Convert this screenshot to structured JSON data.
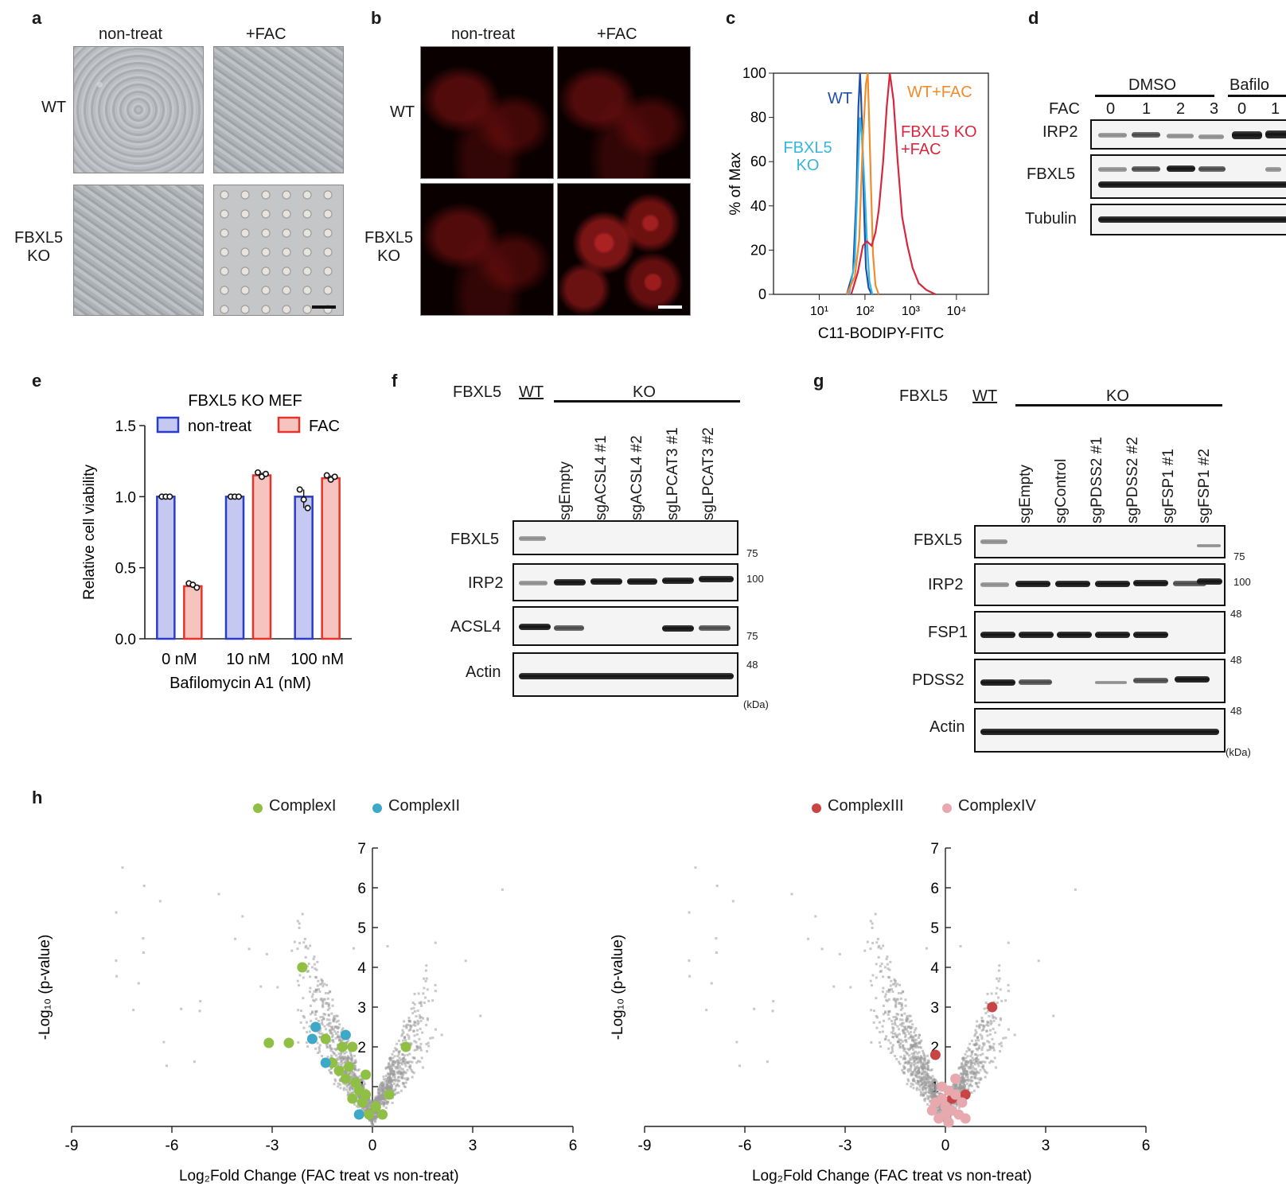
{
  "panel_letters": [
    "a",
    "b",
    "c",
    "d",
    "e",
    "f",
    "g",
    "h"
  ],
  "panel_a": {
    "col_labels": [
      "non-treat",
      "+FAC"
    ],
    "row_labels": [
      "WT",
      "FBXL5\nKO"
    ]
  },
  "panel_b": {
    "col_labels": [
      "non-treat",
      "+FAC"
    ],
    "row_labels": [
      "WT",
      "FBXL5\nKO"
    ]
  },
  "panel_c": {
    "chart_data": {
      "type": "line",
      "title": "",
      "xlabel": "C11-BODIPY-FITC",
      "ylabel": "% of Max",
      "xscale": "log",
      "xlim": [
        1,
        50000
      ],
      "ylim": [
        0,
        100
      ],
      "x_ticks": [
        "10¹",
        "10²",
        "10³",
        "10⁴"
      ],
      "y_ticks": [
        0,
        20,
        40,
        60,
        80,
        100
      ],
      "series": [
        {
          "name": "WT",
          "color": "#1f4fa8",
          "x": [
            40,
            55,
            65,
            72,
            78,
            82,
            88,
            95,
            105,
            120,
            140
          ],
          "y": [
            0,
            10,
            45,
            85,
            100,
            90,
            70,
            40,
            12,
            3,
            0
          ]
        },
        {
          "name": "FBXL5 KO",
          "color": "#35b6e0",
          "x": [
            45,
            60,
            70,
            78,
            85,
            92,
            100,
            110,
            125,
            145
          ],
          "y": [
            0,
            15,
            55,
            80,
            72,
            60,
            45,
            25,
            6,
            0
          ]
        },
        {
          "name": "WT+FAC",
          "color": "#f08c2c",
          "x": [
            40,
            60,
            75,
            90,
            105,
            115,
            125,
            135,
            150,
            170,
            200
          ],
          "y": [
            0,
            8,
            25,
            70,
            95,
            100,
            75,
            50,
            18,
            4,
            0
          ]
        },
        {
          "name": "FBXL5 KO +FAC",
          "color": "#d7263d",
          "x": [
            50,
            70,
            90,
            110,
            140,
            170,
            200,
            250,
            300,
            350,
            420,
            520,
            650,
            850,
            1100,
            1500,
            2200,
            3500
          ],
          "y": [
            0,
            10,
            22,
            24,
            22,
            28,
            38,
            60,
            85,
            100,
            88,
            60,
            35,
            22,
            12,
            5,
            2,
            0
          ]
        }
      ],
      "legend_labels": [
        "WT",
        "FBXL5\nKO",
        "WT+FAC",
        "FBXL5 KO\n+FAC"
      ]
    }
  },
  "panel_d": {
    "group_labels": [
      "DMSO",
      "Bafilo"
    ],
    "fac_label": "FAC",
    "fac_values": [
      "0",
      "1",
      "2",
      "3",
      "0",
      "1"
    ],
    "rows": [
      "IRP2",
      "FBXL5",
      "Tubulin"
    ]
  },
  "panel_e": {
    "chart_data": {
      "type": "bar",
      "title": "FBXL5 KO MEF",
      "xlabel": "Bafilomycin A1 (nM)",
      "ylabel": "Relative cell viability",
      "categories": [
        "0 nM",
        "10 nM",
        "100 nM"
      ],
      "ylim": [
        0,
        1.5
      ],
      "y_ticks": [
        "0.0",
        "0.5",
        "1.0",
        "1.5"
      ],
      "series": [
        {
          "name": "non-treat",
          "color": "#2b3cc8",
          "fill": "#c5c8f0",
          "values": [
            1.0,
            1.0,
            1.0
          ],
          "points": [
            [
              1.0,
              1.0,
              1.0
            ],
            [
              1.0,
              1.0,
              1.0
            ],
            [
              1.05,
              0.98,
              0.92
            ]
          ]
        },
        {
          "name": "FAC",
          "color": "#e5352b",
          "fill": "#f7c3bf",
          "values": [
            0.37,
            1.15,
            1.13
          ],
          "points": [
            [
              0.39,
              0.38,
              0.36
            ],
            [
              1.17,
              1.14,
              1.16
            ],
            [
              1.15,
              1.12,
              1.14
            ]
          ]
        }
      ]
    }
  },
  "panel_f": {
    "fbxl5_label": "FBXL5",
    "wt_label": "WT",
    "ko_label": "KO",
    "lanes": [
      "sgEmpty",
      "sgACSL4 #1",
      "sgACSL4 #2",
      "sgLPCAT3 #1",
      "sgLPCAT3 #2"
    ],
    "rows": [
      "FBXL5",
      "IRP2",
      "ACSL4",
      "Actin"
    ],
    "markers": [
      "75",
      "100",
      "75",
      "48"
    ],
    "kda": "(kDa)"
  },
  "panel_g": {
    "fbxl5_label": "FBXL5",
    "wt_label": "WT",
    "ko_label": "KO",
    "lanes": [
      "sgEmpty",
      "sgControl",
      "sgPDSS2 #1",
      "sgPDSS2 #2",
      "sgFSP1 #1",
      "sgFSP1 #2"
    ],
    "rows": [
      "FBXL5",
      "IRP2",
      "FSP1",
      "PDSS2",
      "Actin"
    ],
    "markers": [
      "75",
      "100",
      "48",
      "48",
      "48"
    ],
    "kda": "(kDa)"
  },
  "panel_h": {
    "left": {
      "legend": [
        "ComplexI",
        "ComplexII"
      ],
      "legend_colors": [
        "#8fbf45",
        "#3ea8c8"
      ],
      "chart_data": {
        "type": "scatter",
        "xlabel": "Log₂Fold Change (FAC treat vs non-treat)",
        "ylabel": "-Log₁₀ (p-value)",
        "xlim": [
          -9,
          6
        ],
        "ylim": [
          0,
          7
        ],
        "x_ticks": [
          "-9",
          "-6",
          "-3",
          "0",
          "3",
          "6"
        ],
        "y_ticks": [
          "1",
          "2",
          "3",
          "4",
          "5",
          "6",
          "7"
        ],
        "series": [
          {
            "name": "ComplexI",
            "color": "#8fbf45",
            "points": [
              [
                -2.1,
                4.0
              ],
              [
                -3.1,
                2.1
              ],
              [
                -2.5,
                2.1
              ],
              [
                -1.4,
                2.2
              ],
              [
                -0.9,
                2.0
              ],
              [
                -0.6,
                2.0
              ],
              [
                -1.2,
                1.6
              ],
              [
                -1.0,
                1.4
              ],
              [
                -0.8,
                1.2
              ],
              [
                -0.5,
                1.1
              ],
              [
                -0.4,
                0.9
              ],
              [
                -0.2,
                0.8
              ],
              [
                -0.6,
                0.7
              ],
              [
                -0.3,
                0.6
              ],
              [
                0.1,
                0.5
              ],
              [
                0.3,
                0.3
              ],
              [
                0.5,
                0.8
              ],
              [
                -0.1,
                0.3
              ],
              [
                1.0,
                2.0
              ],
              [
                -0.7,
                1.5
              ],
              [
                -0.2,
                1.3
              ]
            ]
          },
          {
            "name": "ComplexII",
            "color": "#3ea8c8",
            "points": [
              [
                -1.7,
                2.5
              ],
              [
                -1.8,
                2.2
              ],
              [
                -0.8,
                2.3
              ],
              [
                -1.4,
                1.6
              ],
              [
                -0.4,
                0.3
              ]
            ]
          }
        ]
      }
    },
    "right": {
      "legend": [
        "ComplexIII",
        "ComplexIV"
      ],
      "legend_colors": [
        "#c94545",
        "#e8a9ae"
      ],
      "chart_data": {
        "type": "scatter",
        "xlabel": "Log₂Fold Change (FAC treat vs non-treat)",
        "ylabel": "-Log₁₀ (p-value)",
        "xlim": [
          -9,
          6
        ],
        "ylim": [
          0,
          7
        ],
        "x_ticks": [
          "-9",
          "-6",
          "-3",
          "0",
          "3",
          "6"
        ],
        "y_ticks": [
          "1",
          "2",
          "3",
          "4",
          "5",
          "6",
          "7"
        ],
        "series": [
          {
            "name": "ComplexIII",
            "color": "#c94545",
            "points": [
              [
                1.4,
                3.0
              ],
              [
                -0.3,
                1.8
              ],
              [
                0.6,
                0.8
              ],
              [
                0.2,
                0.7
              ]
            ]
          },
          {
            "name": "ComplexIV",
            "color": "#e8a9ae",
            "points": [
              [
                -0.1,
                1.0
              ],
              [
                0.1,
                0.9
              ],
              [
                0.3,
                0.8
              ],
              [
                -0.3,
                0.6
              ],
              [
                0.0,
                0.5
              ],
              [
                0.2,
                0.4
              ],
              [
                0.4,
                0.3
              ],
              [
                -0.2,
                0.2
              ],
              [
                0.1,
                0.1
              ],
              [
                0.5,
                0.6
              ],
              [
                -0.4,
                0.4
              ],
              [
                0.6,
                0.2
              ],
              [
                0.0,
                0.3
              ],
              [
                0.3,
                1.2
              ],
              [
                -0.1,
                0.7
              ]
            ]
          }
        ]
      }
    }
  }
}
